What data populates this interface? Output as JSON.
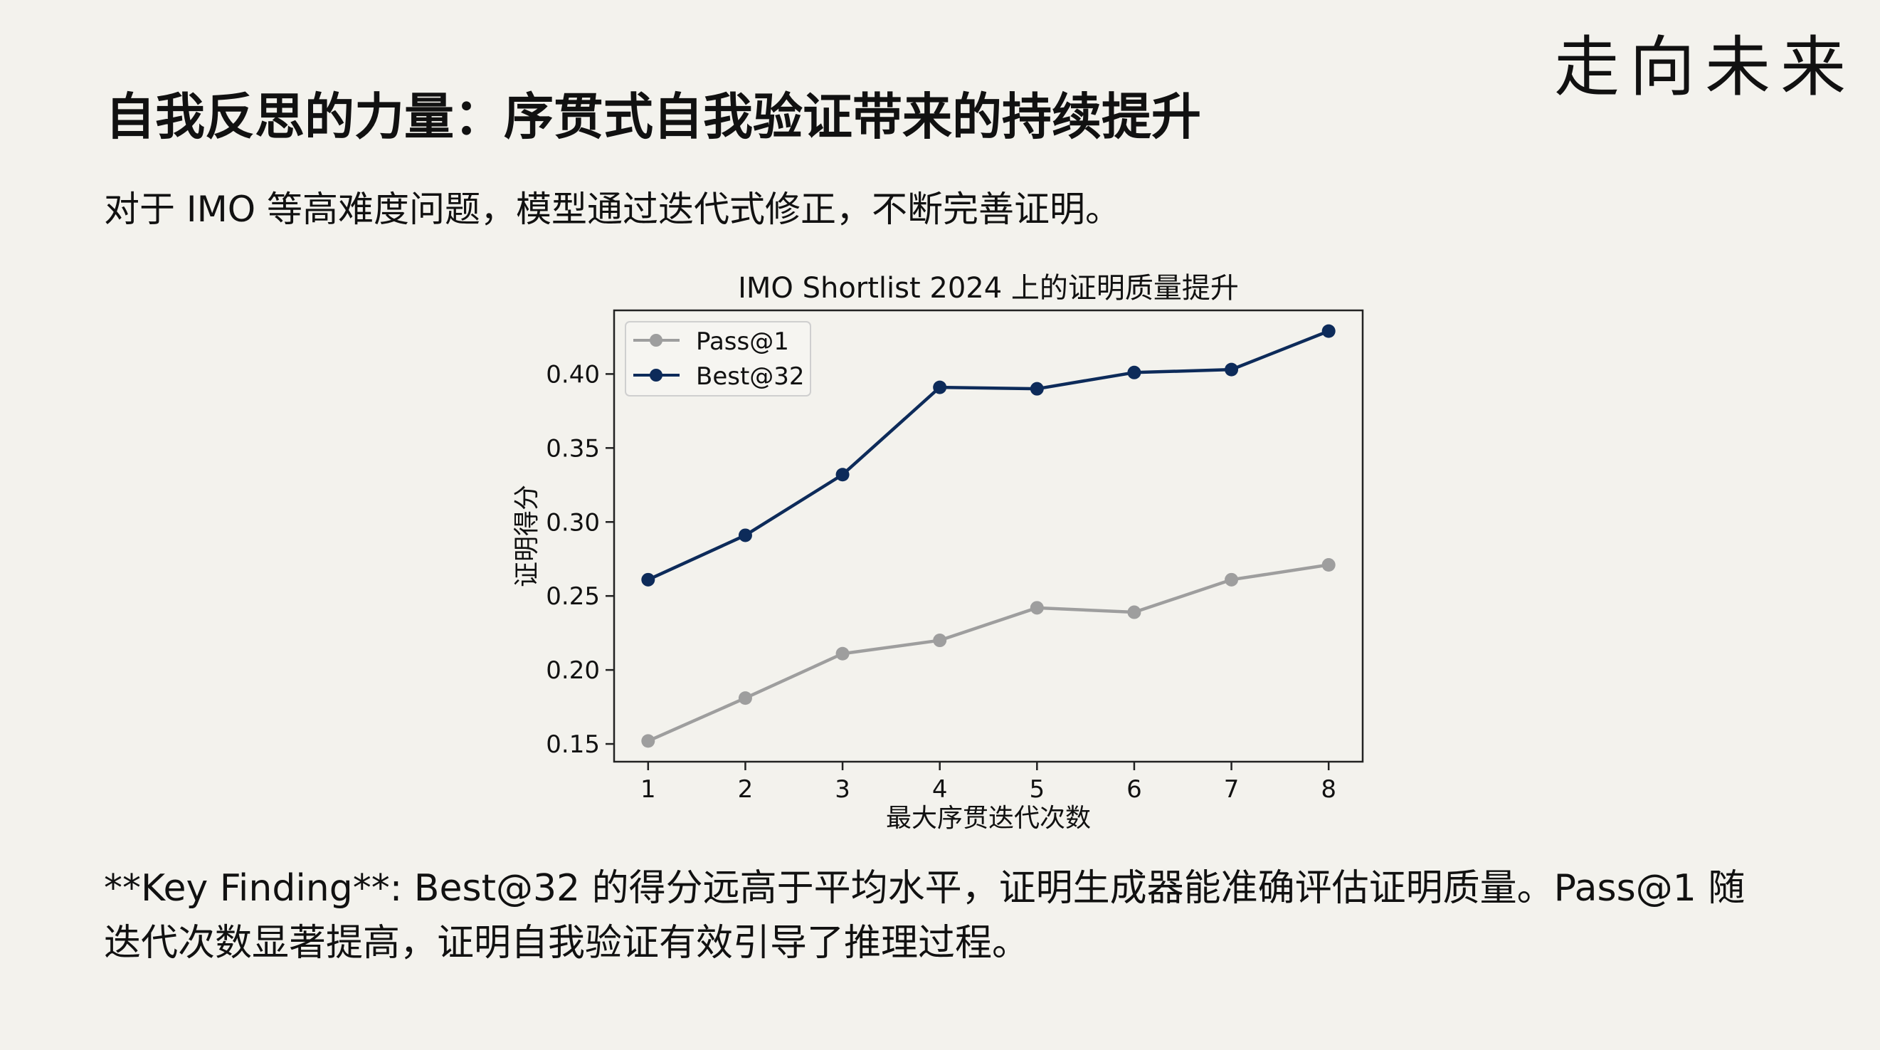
{
  "brand": "走向未来",
  "title": "自我反思的力量：序贯式自我验证带来的持续提升",
  "subtitle": "对于 IMO 等高难度问题，模型通过迭代式修正，不断完善证明。",
  "finding_line1": "**Key Finding**: Best@32 的得分远高于平均水平，证明生成器能准确评估证明质量。Pass@1 随",
  "finding_line2": "迭代次数显著提高，证明自我验证有效引导了推理过程。",
  "chart_data": {
    "type": "line",
    "title": "IMO Shortlist 2024 上的证明质量提升",
    "xlabel": "最大序贯迭代次数",
    "ylabel": "证明得分",
    "x": [
      1,
      2,
      3,
      4,
      5,
      6,
      7,
      8
    ],
    "xlim": [
      0.65,
      8.35
    ],
    "ylim": [
      0.138,
      0.443
    ],
    "yticks": [
      0.15,
      0.2,
      0.25,
      0.3,
      0.35,
      0.4
    ],
    "ytick_labels": [
      "0.15",
      "0.20",
      "0.25",
      "0.30",
      "0.35",
      "0.40"
    ],
    "xtick_labels": [
      "1",
      "2",
      "3",
      "4",
      "5",
      "6",
      "7",
      "8"
    ],
    "grid": false,
    "legend_position": "top-left",
    "series": [
      {
        "name": "Pass@1",
        "color": "#9e9e9e",
        "values": [
          0.152,
          0.181,
          0.211,
          0.22,
          0.242,
          0.239,
          0.261,
          0.271
        ]
      },
      {
        "name": "Best@32",
        "color": "#0d2b5a",
        "values": [
          0.261,
          0.291,
          0.332,
          0.391,
          0.39,
          0.401,
          0.403,
          0.429
        ]
      }
    ]
  }
}
